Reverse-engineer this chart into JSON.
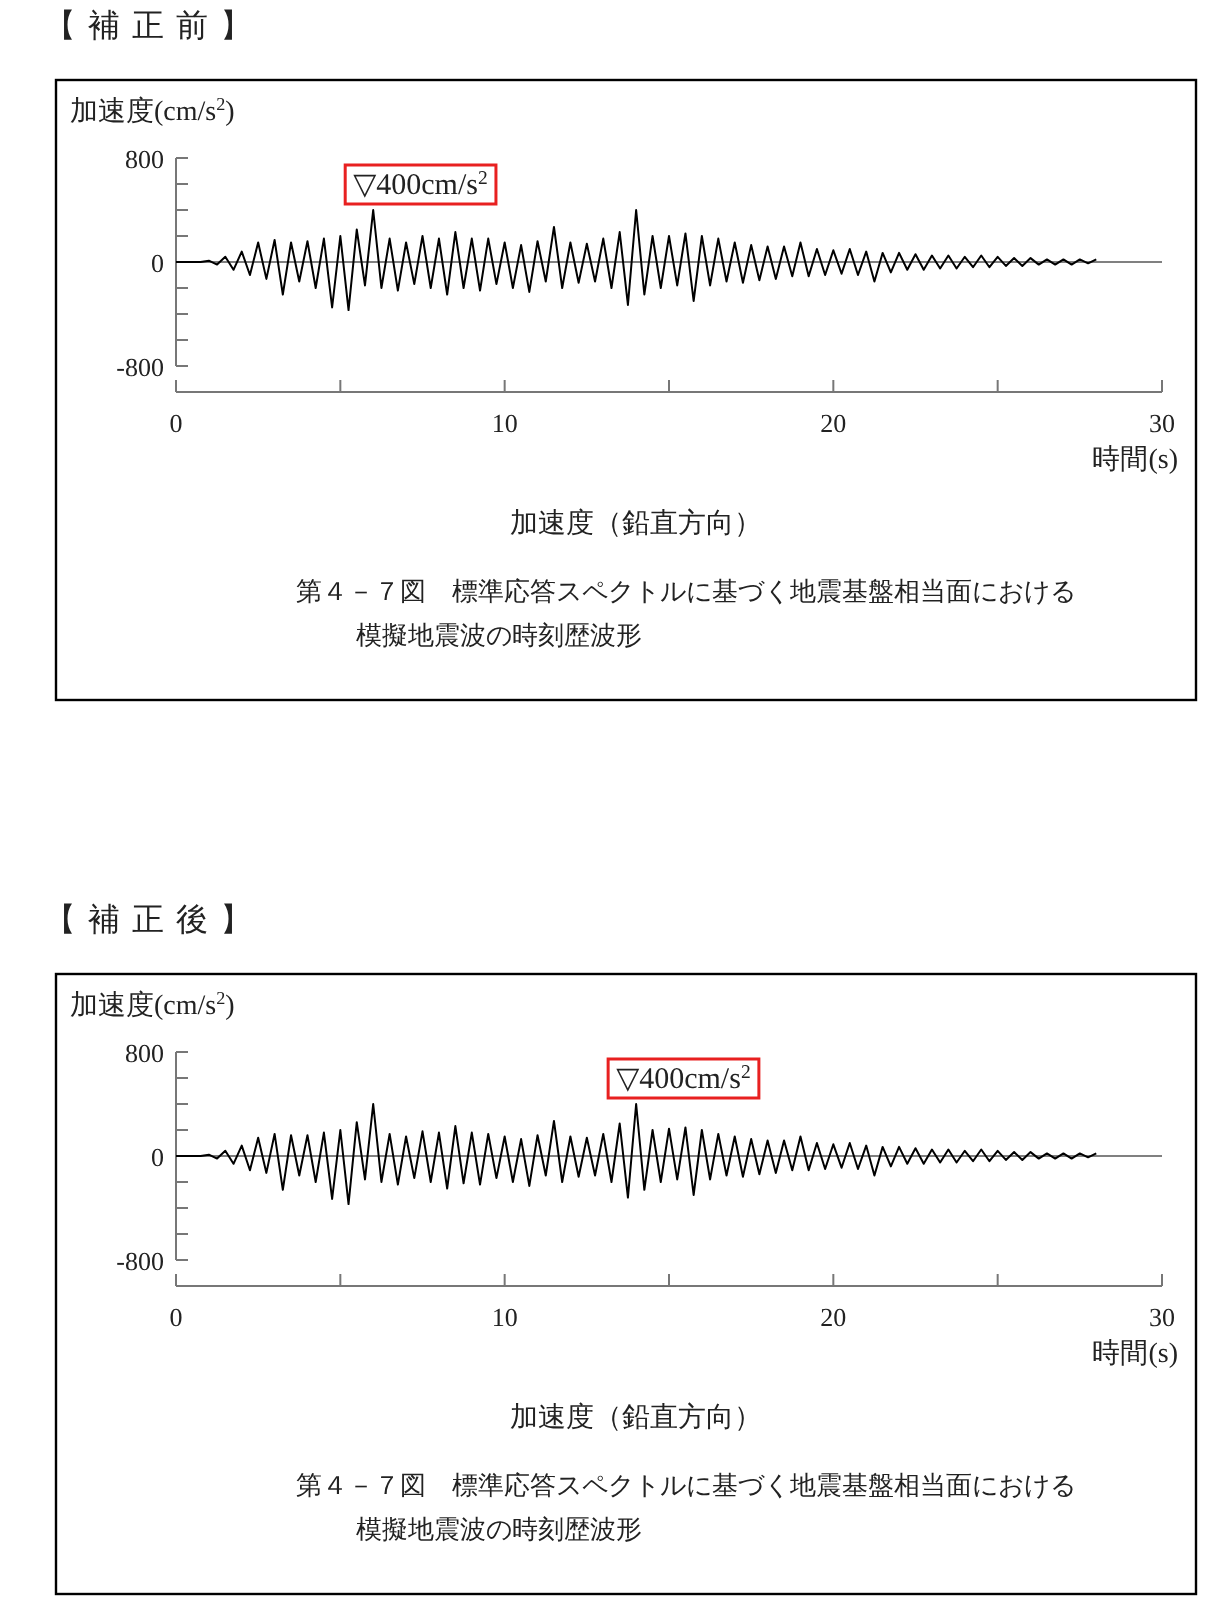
{
  "chart_data": [
    {
      "type": "line",
      "title": "【 補 正 前 】",
      "ylabel": "加速度(cm/s$^{2}$)",
      "xlabel": "時間(s)",
      "color": "#000000",
      "marker": "none",
      "xlim": [
        0,
        30
      ],
      "xticks": [
        0,
        {
          "value": 5,
          "label": null
        },
        10,
        {
          "value": 15,
          "label": null
        },
        20,
        {
          "value": 25,
          "label": null
        },
        30
      ],
      "ylim": [
        -1000,
        800
      ],
      "yticks": [
        800,
        {
          "value": 600,
          "label": null
        },
        {
          "value": 400,
          "label": null
        },
        {
          "value": 200,
          "label": null
        },
        0,
        {
          "value": -200,
          "label": null
        },
        {
          "value": -400,
          "label": null
        },
        {
          "value": -600,
          "label": null
        },
        -800
      ],
      "ref_lines": [
        {
          "axis": "y",
          "value": 0,
          "color": "#808080"
        }
      ],
      "annotations": [
        {
          "text": "▽400cm/s$^{2}$",
          "x": 6.0,
          "y": 400
        },
        "加速度（鉛直方向）",
        "第４－７図　標準応答スペクトルに基づく地震基盤相当面における",
        "模擬地震波の時刻歴波形"
      ],
      "x": [
        0,
        0.25,
        0.5,
        0.75,
        1,
        1.25,
        1.5,
        1.75,
        2,
        2.25,
        2.5,
        2.75,
        3,
        3.25,
        3.5,
        3.75,
        4,
        4.25,
        4.5,
        4.75,
        5,
        5.25,
        5.5,
        5.75,
        6,
        6.25,
        6.5,
        6.75,
        7,
        7.25,
        7.5,
        7.75,
        8,
        8.25,
        8.5,
        8.75,
        9,
        9.25,
        9.5,
        9.75,
        10,
        10.25,
        10.5,
        10.75,
        11,
        11.25,
        11.5,
        11.75,
        12,
        12.25,
        12.5,
        12.75,
        13,
        13.25,
        13.5,
        13.75,
        14,
        14.25,
        14.5,
        14.75,
        15,
        15.25,
        15.5,
        15.75,
        16,
        16.25,
        16.5,
        16.75,
        17,
        17.25,
        17.5,
        17.75,
        18,
        18.25,
        18.5,
        18.75,
        19,
        19.25,
        19.5,
        19.75,
        20,
        20.25,
        20.5,
        20.75,
        21,
        21.25,
        21.5,
        21.75,
        22,
        22.25,
        22.5,
        22.75,
        23,
        23.25,
        23.5,
        23.75,
        24,
        24.25,
        24.5,
        24.75,
        25,
        25.25,
        25.5,
        25.75,
        26,
        26.25,
        26.5,
        26.75,
        27,
        27.25,
        27.5,
        27.75,
        28
      ],
      "values": [
        0,
        0,
        0,
        0,
        10,
        -20,
        40,
        -60,
        80,
        -100,
        150,
        -130,
        170,
        -250,
        150,
        -150,
        160,
        -200,
        180,
        -350,
        200,
        -370,
        250,
        -180,
        400,
        -200,
        180,
        -220,
        150,
        -170,
        200,
        -200,
        180,
        -250,
        230,
        -200,
        180,
        -220,
        180,
        -170,
        150,
        -200,
        130,
        -230,
        160,
        -150,
        270,
        -200,
        150,
        -160,
        140,
        -150,
        180,
        -200,
        230,
        -330,
        400,
        -250,
        200,
        -200,
        200,
        -180,
        220,
        -300,
        200,
        -180,
        180,
        -150,
        150,
        -160,
        130,
        -140,
        120,
        -130,
        120,
        -110,
        150,
        -110,
        100,
        -100,
        90,
        -90,
        100,
        -100,
        80,
        -150,
        70,
        -80,
        70,
        -60,
        60,
        -60,
        50,
        -50,
        50,
        -50,
        40,
        -40,
        50,
        -40,
        40,
        -30,
        30,
        -30,
        30,
        -20,
        20,
        -20,
        20,
        -20,
        20,
        -10,
        20
      ]
    },
    {
      "type": "line",
      "title": "【 補 正 後 】",
      "ylabel": "加速度(cm/s$^{2}$)",
      "xlabel": "時間(s)",
      "color": "#000000",
      "marker": "none",
      "xlim": [
        0,
        30
      ],
      "xticks": [
        0,
        {
          "value": 5,
          "label": null
        },
        10,
        {
          "value": 15,
          "label": null
        },
        20,
        {
          "value": 25,
          "label": null
        },
        30
      ],
      "ylim": [
        -1000,
        800
      ],
      "yticks": [
        800,
        {
          "value": 600,
          "label": null
        },
        {
          "value": 400,
          "label": null
        },
        {
          "value": 200,
          "label": null
        },
        0,
        {
          "value": -200,
          "label": null
        },
        {
          "value": -400,
          "label": null
        },
        {
          "value": -600,
          "label": null
        },
        -800
      ],
      "ref_lines": [
        {
          "axis": "y",
          "value": 0,
          "color": "#808080"
        }
      ],
      "annotations": [
        {
          "text": "▽400cm/s$^{2}$",
          "x": 14.0,
          "y": 400
        },
        "加速度（鉛直方向）",
        "第４－７図　標準応答スペクトルに基づく地震基盤相当面における",
        "模擬地震波の時刻歴波形"
      ],
      "x": [
        0,
        0.25,
        0.5,
        0.75,
        1,
        1.25,
        1.5,
        1.75,
        2,
        2.25,
        2.5,
        2.75,
        3,
        3.25,
        3.5,
        3.75,
        4,
        4.25,
        4.5,
        4.75,
        5,
        5.25,
        5.5,
        5.75,
        6,
        6.25,
        6.5,
        6.75,
        7,
        7.25,
        7.5,
        7.75,
        8,
        8.25,
        8.5,
        8.75,
        9,
        9.25,
        9.5,
        9.75,
        10,
        10.25,
        10.5,
        10.75,
        11,
        11.25,
        11.5,
        11.75,
        12,
        12.25,
        12.5,
        12.75,
        13,
        13.25,
        13.5,
        13.75,
        14,
        14.25,
        14.5,
        14.75,
        15,
        15.25,
        15.5,
        15.75,
        16,
        16.25,
        16.5,
        16.75,
        17,
        17.25,
        17.5,
        17.75,
        18,
        18.25,
        18.5,
        18.75,
        19,
        19.25,
        19.5,
        19.75,
        20,
        20.25,
        20.5,
        20.75,
        21,
        21.25,
        21.5,
        21.75,
        22,
        22.25,
        22.5,
        22.75,
        23,
        23.25,
        23.5,
        23.75,
        24,
        24.25,
        24.5,
        24.75,
        25,
        25.25,
        25.5,
        25.75,
        26,
        26.25,
        26.5,
        26.75,
        27,
        27.25,
        27.5,
        27.75,
        28
      ],
      "values": [
        0,
        0,
        0,
        0,
        10,
        -20,
        40,
        -60,
        80,
        -110,
        140,
        -130,
        170,
        -260,
        160,
        -150,
        160,
        -200,
        180,
        -330,
        200,
        -370,
        260,
        -180,
        400,
        -200,
        170,
        -220,
        150,
        -170,
        190,
        -200,
        180,
        -250,
        230,
        -210,
        180,
        -220,
        170,
        -170,
        150,
        -200,
        130,
        -230,
        160,
        -150,
        270,
        -200,
        150,
        -160,
        140,
        -150,
        170,
        -200,
        250,
        -320,
        400,
        -260,
        200,
        -200,
        210,
        -180,
        220,
        -300,
        200,
        -180,
        170,
        -150,
        150,
        -160,
        130,
        -140,
        120,
        -130,
        120,
        -110,
        150,
        -110,
        100,
        -100,
        90,
        -90,
        100,
        -100,
        80,
        -150,
        70,
        -80,
        70,
        -60,
        60,
        -60,
        50,
        -50,
        50,
        -50,
        40,
        -40,
        50,
        -40,
        40,
        -30,
        30,
        -30,
        30,
        -20,
        20,
        -20,
        20,
        -20,
        20,
        -10,
        20
      ]
    }
  ]
}
